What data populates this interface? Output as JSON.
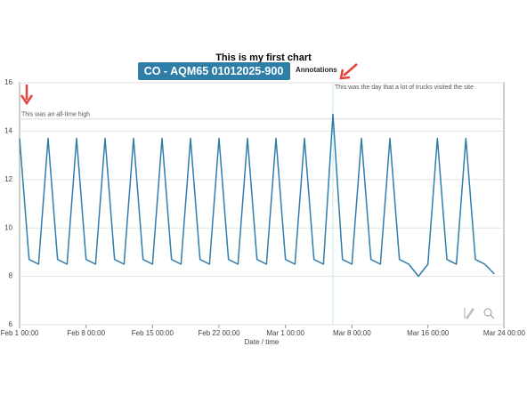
{
  "chart_data": {
    "type": "line",
    "title": "This is my first chart",
    "controls": {
      "annotations": "Annotations"
    },
    "x_label": "Date / time",
    "x": [
      "Feb 1 00:00",
      "Feb 2 00:00",
      "Feb 3 00:00",
      "Feb 4 00:00",
      "Feb 5 00:00",
      "Feb 6 00:00",
      "Feb 7 00:00",
      "Feb 8 00:00",
      "Feb 9 00:00",
      "Feb 10 00:00",
      "Feb 11 00:00",
      "Feb 12 00:00",
      "Feb 13 00:00",
      "Feb 14 00:00",
      "Feb 15 00:00",
      "Feb 16 00:00",
      "Feb 17 00:00",
      "Feb 18 00:00",
      "Feb 19 00:00",
      "Feb 20 00:00",
      "Feb 21 00:00",
      "Feb 22 00:00",
      "Feb 23 00:00",
      "Feb 24 00:00",
      "Feb 25 00:00",
      "Feb 26 00:00",
      "Feb 27 00:00",
      "Feb 28 00:00",
      "Mar 1 00:00",
      "Mar 2 00:00",
      "Mar 3 00:00",
      "Mar 4 00:00",
      "Mar 5 00:00",
      "Mar 6 00:00",
      "Mar 7 00:00",
      "Mar 8 00:00",
      "Mar 9 00:00",
      "Mar 10 00:00",
      "Mar 11 00:00",
      "Mar 12 00:00",
      "Mar 13 00:00",
      "Mar 14 00:00",
      "Mar 15 00:00",
      "Mar 16 00:00",
      "Mar 17 00:00",
      "Mar 18 00:00",
      "Mar 19 00:00",
      "Mar 20 00:00",
      "Mar 21 00:00",
      "Mar 22 00:00",
      "Mar 23 00:00"
    ],
    "series": [
      {
        "name": "CO - AQM65 01012025-900",
        "color": "#2f7ea8",
        "values": [
          13.7,
          8.7,
          8.5,
          13.7,
          8.7,
          8.5,
          13.7,
          8.7,
          8.5,
          13.7,
          8.7,
          8.5,
          13.7,
          8.7,
          8.5,
          13.7,
          8.7,
          8.5,
          13.7,
          8.7,
          8.5,
          13.7,
          8.7,
          8.5,
          13.7,
          8.7,
          8.5,
          13.7,
          8.7,
          8.5,
          13.7,
          8.7,
          8.5,
          14.7,
          8.7,
          8.5,
          13.7,
          8.7,
          8.5,
          13.7,
          8.7,
          8.5,
          8.0,
          8.5,
          13.7,
          8.7,
          8.5,
          13.7,
          8.7,
          8.5,
          8.1
        ]
      }
    ],
    "xlim": [
      "Feb 1 00:00",
      "Mar 24 00:00"
    ],
    "xticks": [
      "Feb 1 00:00",
      "Feb 8 00:00",
      "Feb 15 00:00",
      "Feb 22 00:00",
      "Mar 1 00:00",
      "Mar 8 00:00",
      "Mar 16 00:00",
      "Mar 24 00:00"
    ],
    "ylim": [
      6,
      16
    ],
    "yticks": [
      6,
      8,
      10,
      12,
      14,
      16
    ],
    "grid": true,
    "annotations": [
      {
        "label": "This was an all-time high",
        "y": 14.5
      },
      {
        "label": "This was the day that a lot of trucks visited the site",
        "x": "Mar 6 00:00"
      }
    ]
  }
}
